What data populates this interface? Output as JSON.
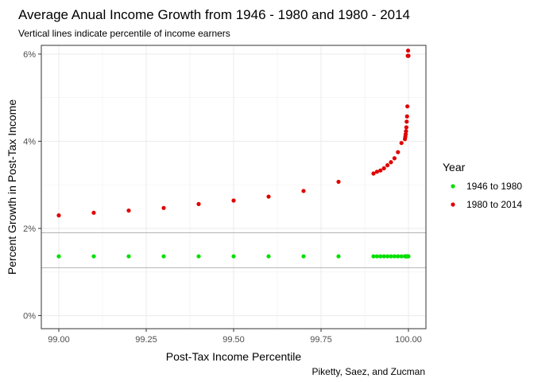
{
  "chart_data": {
    "type": "scatter",
    "title": "Average Anual Income Growth from 1946 - 1980 and 1980 - 2014",
    "subtitle": "Vertical lines indicate percentile of income earners",
    "xlabel": "Post-Tax Income Percentile",
    "ylabel": "Percent Growth in Post-Tax Income",
    "caption": "Piketty, Saez, and Zucman",
    "xlim": [
      98.95,
      100.05
    ],
    "ylim": [
      -0.003,
      0.062
    ],
    "x_ticks": [
      99.0,
      99.25,
      99.5,
      99.75,
      100.0
    ],
    "x_tick_labels": [
      "99.00",
      "99.25",
      "99.50",
      "99.75",
      "100.00"
    ],
    "y_ticks": [
      0,
      0.02,
      0.04,
      0.06
    ],
    "y_tick_labels": [
      "0%",
      "2%",
      "4%",
      "6%"
    ],
    "hlines": [
      0.019,
      0.011
    ],
    "grid": true,
    "legend": {
      "title": "Year",
      "position": "right"
    },
    "series": [
      {
        "name": "1946 to 1980",
        "color": "#00e000",
        "x": [
          99.0,
          99.1,
          99.2,
          99.3,
          99.4,
          99.5,
          99.6,
          99.7,
          99.8,
          99.9,
          99.91,
          99.92,
          99.93,
          99.94,
          99.95,
          99.96,
          99.97,
          99.98,
          99.99,
          99.991,
          99.992,
          99.993,
          99.994,
          99.995,
          99.996,
          99.997,
          99.998,
          99.999,
          100.0
        ],
        "y": [
          0.0136,
          0.0136,
          0.0136,
          0.0136,
          0.0136,
          0.0136,
          0.0136,
          0.0136,
          0.0136,
          0.0136,
          0.0136,
          0.0136,
          0.0136,
          0.0136,
          0.0136,
          0.0136,
          0.0136,
          0.0136,
          0.0136,
          0.0136,
          0.0136,
          0.0136,
          0.0136,
          0.0136,
          0.0136,
          0.0136,
          0.0136,
          0.0136,
          0.0136
        ]
      },
      {
        "name": "1980 to 2014",
        "color": "#e00000",
        "x": [
          99.0,
          99.1,
          99.2,
          99.3,
          99.4,
          99.5,
          99.6,
          99.7,
          99.8,
          99.9,
          99.91,
          99.92,
          99.93,
          99.94,
          99.95,
          99.96,
          99.97,
          99.98,
          99.99,
          99.991,
          99.992,
          99.993,
          99.994,
          99.995,
          99.996,
          99.997,
          99.998,
          99.999,
          100.0
        ],
        "y": [
          0.023,
          0.0236,
          0.0241,
          0.0247,
          0.0256,
          0.0264,
          0.0273,
          0.0286,
          0.0307,
          0.0326,
          0.033,
          0.0333,
          0.0338,
          0.0345,
          0.0352,
          0.0361,
          0.0375,
          0.0396,
          0.0405,
          0.041,
          0.0416,
          0.0423,
          0.0432,
          0.0445,
          0.0457,
          0.048,
          0.0596,
          0.0608,
          0.0596
        ]
      }
    ]
  }
}
